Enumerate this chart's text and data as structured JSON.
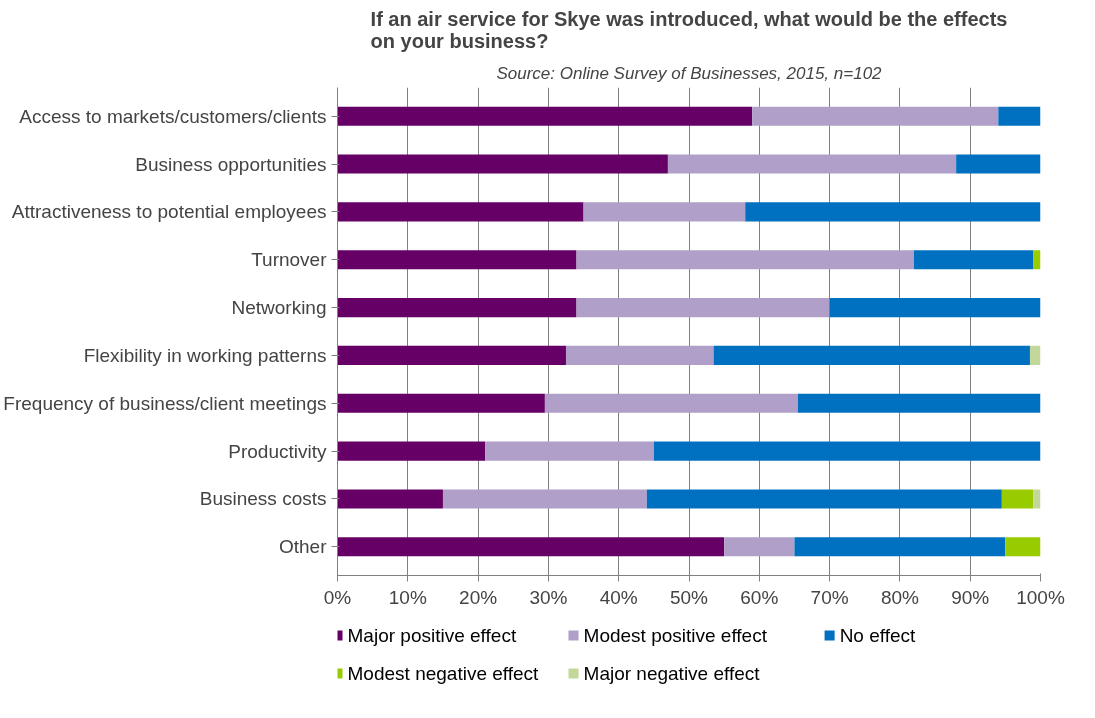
{
  "chart_data": {
    "type": "bar",
    "orientation": "horizontal",
    "stacked": true,
    "title": "If an air service for Skye was introduced, what would be the effects on your business?",
    "subtitle": "Source: Online Survey of Businesses, 2015, n=102",
    "categories": [
      "Access to markets/customers/clients",
      "Business opportunities",
      "Attractiveness to potential employees",
      "Turnover",
      "Networking",
      "Flexibility in working patterns",
      "Frequency of business/client meetings",
      "Productivity",
      "Business costs",
      "Other"
    ],
    "series": [
      {
        "name": "Major positive effect",
        "color": "#660066",
        "values": [
          59,
          47,
          35,
          34,
          34,
          32.5,
          29.5,
          21,
          15,
          55
        ]
      },
      {
        "name": "Modest positive effect",
        "color": "#b09fc8",
        "values": [
          35,
          41,
          23,
          48,
          36,
          21,
          36,
          24,
          29,
          10
        ]
      },
      {
        "name": "No effect",
        "color": "#0070c0",
        "values": [
          6,
          12,
          42,
          17,
          30,
          45,
          34.5,
          55,
          50.5,
          30
        ]
      },
      {
        "name": "Modest negative effect",
        "color": "#99cc00",
        "values": [
          null,
          null,
          null,
          1,
          null,
          null,
          null,
          null,
          4.5,
          5
        ]
      },
      {
        "name": "Major negative effect",
        "color": "#c4d79b",
        "values": [
          null,
          null,
          null,
          null,
          null,
          1.5,
          null,
          null,
          1,
          null
        ]
      }
    ],
    "xlim": [
      0,
      100
    ],
    "xticks": [
      {
        "value": 0,
        "label": "0%"
      },
      {
        "value": 10,
        "label": "10%"
      },
      {
        "value": 20,
        "label": "20%"
      },
      {
        "value": 30,
        "label": "30%"
      },
      {
        "value": 40,
        "label": "40%"
      },
      {
        "value": 50,
        "label": "50%"
      },
      {
        "value": 60,
        "label": "60%"
      },
      {
        "value": 70,
        "label": "70%"
      },
      {
        "value": 80,
        "label": "80%"
      },
      {
        "value": 90,
        "label": "90%"
      },
      {
        "value": 100,
        "label": "100%"
      }
    ],
    "grid": "x",
    "legend": "bottom"
  }
}
